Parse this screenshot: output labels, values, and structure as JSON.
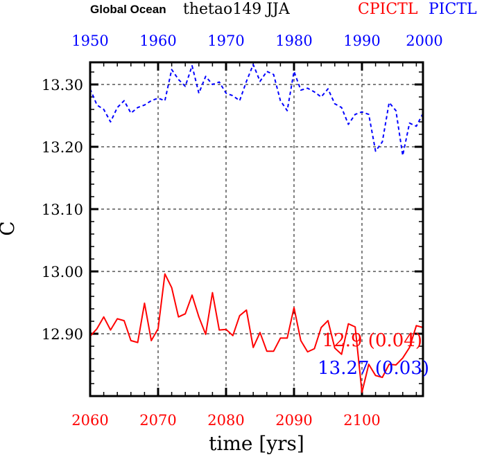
{
  "chart_data": {
    "type": "line",
    "title": {
      "region": "Global Ocean",
      "variable": "thetao149 JJA",
      "series_red_label": "CPICTL",
      "series_blue_label": "PICTL"
    },
    "xlabel": "time [yrs]",
    "ylabel": "C",
    "ylim": [
      12.8,
      13.335
    ],
    "yticks": [
      "13.30",
      "13.20",
      "13.10",
      "13.00",
      "12.90"
    ],
    "ytick_values": [
      13.3,
      13.2,
      13.1,
      13.0,
      12.9
    ],
    "x_bottom": {
      "range": [
        2060,
        2109
      ],
      "ticks": [
        "2060",
        "2070",
        "2080",
        "2090",
        "2100"
      ],
      "color": "#ff0000"
    },
    "x_top": {
      "range": [
        1950,
        1999
      ],
      "ticks": [
        "1950",
        "1960",
        "1970",
        "1980",
        "1990",
        "2000"
      ],
      "color": "#0000ff"
    },
    "grid": true,
    "series": [
      {
        "name": "CPICTL",
        "color": "#ff0000",
        "style": "solid",
        "axis": "bottom",
        "x_start": 2060,
        "values": [
          12.896,
          12.908,
          12.927,
          12.906,
          12.924,
          12.921,
          12.889,
          12.886,
          12.949,
          12.889,
          12.908,
          12.996,
          12.974,
          12.927,
          12.932,
          12.962,
          12.927,
          12.899,
          12.966,
          12.906,
          12.907,
          12.897,
          12.929,
          12.938,
          12.878,
          12.902,
          12.872,
          12.872,
          12.893,
          12.893,
          12.942,
          12.889,
          12.871,
          12.876,
          12.91,
          12.921,
          12.877,
          12.867,
          12.916,
          12.911,
          12.806,
          12.851,
          12.833,
          12.83,
          12.851,
          12.85,
          12.861,
          12.878,
          12.913,
          12.91
        ],
        "annotation": "12.9 (0.04)"
      },
      {
        "name": "PICTL",
        "color": "#0000ff",
        "style": "dashed",
        "axis": "top",
        "x_start": 1950,
        "values": [
          13.293,
          13.267,
          13.26,
          13.24,
          13.263,
          13.274,
          13.254,
          13.263,
          13.267,
          13.274,
          13.278,
          13.274,
          13.324,
          13.308,
          13.297,
          13.33,
          13.286,
          13.313,
          13.3,
          13.304,
          13.286,
          13.282,
          13.274,
          13.305,
          13.332,
          13.305,
          13.321,
          13.316,
          13.274,
          13.258,
          13.321,
          13.291,
          13.294,
          13.288,
          13.28,
          13.293,
          13.269,
          13.263,
          13.236,
          13.252,
          13.256,
          13.252,
          13.193,
          13.208,
          13.271,
          13.258,
          13.186,
          13.238,
          13.233,
          13.254
        ],
        "annotation": "13.27 (0.03)"
      }
    ]
  }
}
